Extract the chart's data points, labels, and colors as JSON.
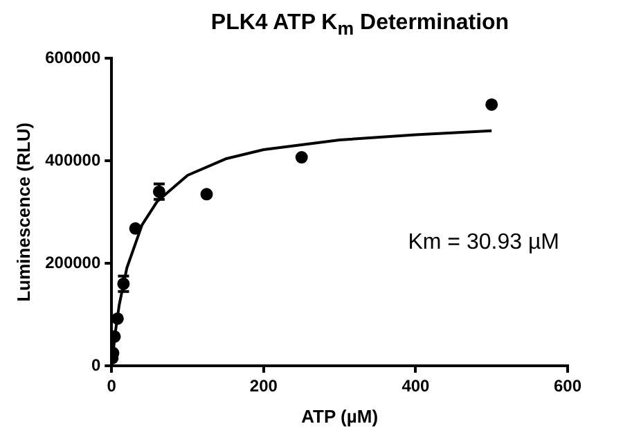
{
  "chart_data": {
    "type": "scatter",
    "title": "PLK4 ATP K$_{m}$ Determination",
    "xlabel": "ATP (µM)",
    "ylabel": "Luminescence (RLU)",
    "xlim": [
      0,
      600
    ],
    "xticks": [
      0,
      200,
      400,
      600
    ],
    "ylim": [
      0,
      600000
    ],
    "yticks": [
      0,
      200000,
      400000,
      600000
    ],
    "grid": false,
    "legend": false,
    "series": [
      {
        "color": "#000000",
        "marker": "circle",
        "x": [
          0.98,
          1.95,
          3.9,
          7.8,
          15.6,
          31.25,
          62.5,
          125,
          250,
          500
        ],
        "values": [
          15000,
          25000,
          57000,
          92000,
          160000,
          268000,
          340000,
          335000,
          407000,
          510000
        ],
        "errors": [
          null,
          null,
          null,
          null,
          15000,
          null,
          15000,
          null,
          null,
          null
        ]
      },
      {
        "type": "line",
        "color": "#000000",
        "marker": "none",
        "x": [
          0,
          5,
          10,
          20,
          40,
          60,
          100,
          150,
          200,
          300,
          400,
          500
        ],
        "values": [
          0,
          67000,
          119000,
          191000,
          275000,
          321000,
          372000,
          404000,
          422000,
          441000,
          451000,
          459000
        ]
      }
    ],
    "annotations": [
      "Km = 30.93 µM"
    ]
  }
}
